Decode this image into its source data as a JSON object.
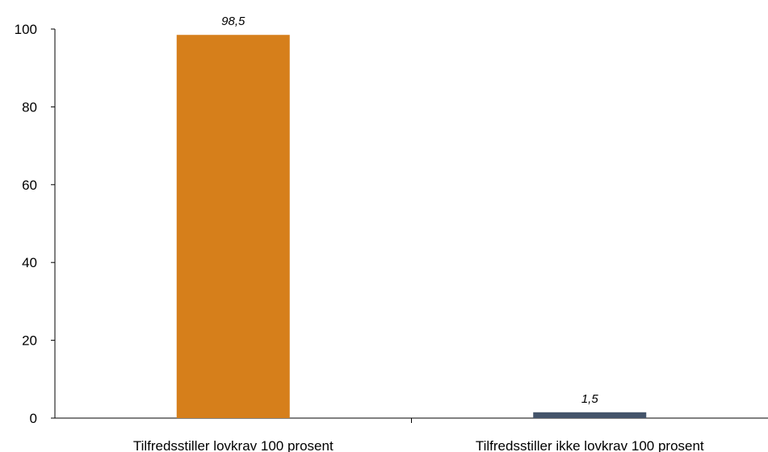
{
  "chart_data": {
    "type": "bar",
    "title": "",
    "xlabel": "",
    "ylabel": "",
    "categories": [
      "Tilfredsstiller lovkrav 100 prosent",
      "Tilfredsstiller ikke lovkrav 100 prosent"
    ],
    "values": [
      98.5,
      1.5
    ],
    "data_labels": [
      "98,5",
      "1,5"
    ],
    "bar_colors": [
      "#d67f1b",
      "#44546a"
    ],
    "ylim": [
      0,
      100
    ],
    "yticks": [
      0,
      20,
      40,
      60,
      80,
      100
    ],
    "grid": false,
    "legend": "none"
  }
}
